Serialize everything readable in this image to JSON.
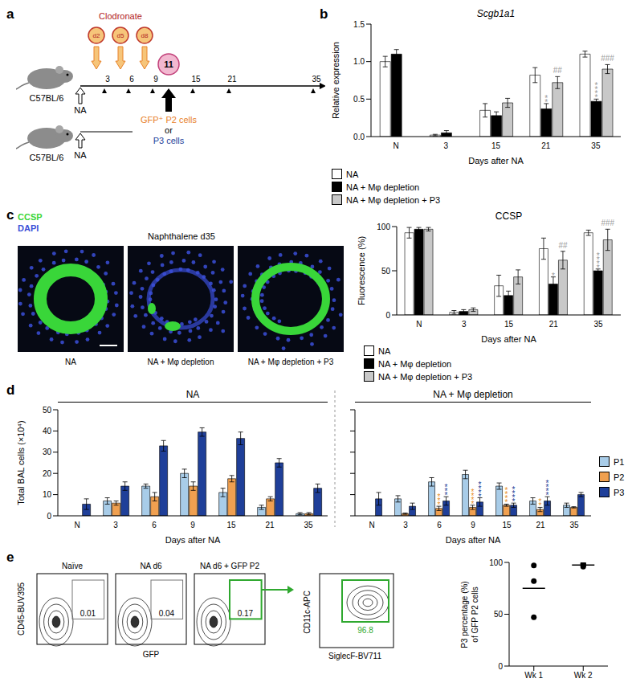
{
  "panel_labels": [
    "a",
    "b",
    "c",
    "d",
    "e"
  ],
  "schematic": {
    "mouse_strain": "C57BL/6",
    "injury": "NA",
    "treatment": "Clodronate",
    "clodronate_days": [
      {
        "day": 2,
        "label": "d2"
      },
      {
        "day": 5,
        "label": "d5"
      },
      {
        "day": 8,
        "label": "d8"
      }
    ],
    "timeline_days": [
      3,
      6,
      9,
      15,
      21,
      35
    ],
    "transfer_day": 11,
    "transfer_cells": [
      {
        "text": "GFP⁺ P2 cells",
        "color": "#e8822a"
      },
      {
        "text": "or",
        "color": "#000000"
      },
      {
        "text": "P3 cells",
        "color": "#1f3f99"
      }
    ]
  },
  "micrographs": {
    "title": "Naphthalene d35",
    "stains": [
      {
        "name": "CCSP",
        "color": "#39d639"
      },
      {
        "name": "DAPI",
        "color": "#3b4fd8"
      }
    ],
    "panels": [
      "NA",
      "NA + Mφ depletion",
      "NA + Mφ depletion + P3"
    ]
  },
  "flow": {
    "y_label": "CD45-BUV395",
    "x_label": "GFP",
    "plots": [
      {
        "title": "Naïve",
        "gate": 0.01
      },
      {
        "title": "NA d6",
        "gate": 0.04
      },
      {
        "title": "NA d6 + GFP P2",
        "gate": 0.17
      }
    ],
    "subgate": {
      "y_label": "CD11c-APC",
      "x_label": "SiglecF-BV711",
      "gate": 96.8
    }
  },
  "chart_data": [
    {
      "type": "bar",
      "title": "Scgb1a1",
      "y_label": "Relative expression",
      "x_label": "Days after NA",
      "categories": [
        "N",
        "3",
        "15",
        "21",
        "35"
      ],
      "series": [
        {
          "name": "NA",
          "color": "#ffffff",
          "values": [
            1.0,
            0.02,
            0.35,
            0.82,
            1.1
          ],
          "errors": [
            0.07,
            0.01,
            0.09,
            0.1,
            0.04
          ]
        },
        {
          "name": "NA + Mφ depletion",
          "color": "#000000",
          "values": [
            1.1,
            0.05,
            0.28,
            0.37,
            0.47
          ],
          "errors": [
            0.06,
            0.03,
            0.05,
            0.07,
            0.03
          ]
        },
        {
          "name": "NA + Mφ depletion + P3",
          "color": "#c8c8c8",
          "values": [
            null,
            null,
            0.45,
            0.72,
            0.9
          ],
          "errors": [
            null,
            null,
            0.06,
            0.08,
            0.06
          ]
        }
      ],
      "ylim": [
        0,
        1.5
      ],
      "yticks": [
        {
          "value": 0,
          "label": "0.0"
        },
        {
          "value": 0.5,
          "label": "0.5"
        },
        {
          "value": 1,
          "label": "1.0"
        },
        {
          "value": 1.5,
          "label": "1.5"
        }
      ],
      "annotations": [
        {
          "category": "21",
          "series": "NA + Mφ depletion",
          "text": "**",
          "color": "#9a9a9a"
        },
        {
          "category": "35",
          "series": "NA + Mφ depletion",
          "text": "****",
          "color": "#9a9a9a"
        },
        {
          "category": "21",
          "series": "NA + Mφ depletion + P3",
          "text": "##",
          "color": "#9a9a9a"
        },
        {
          "category": "35",
          "series": "NA + Mφ depletion + P3",
          "text": "###",
          "color": "#9a9a9a"
        }
      ]
    },
    {
      "type": "bar",
      "title": "CCSP",
      "y_label": "Fluorescence (%)",
      "x_label": "Days after NA",
      "categories": [
        "N",
        "3",
        "15",
        "21",
        "35"
      ],
      "series": [
        {
          "name": "NA",
          "color": "#ffffff",
          "values": [
            93,
            3,
            33,
            75,
            93
          ],
          "errors": [
            6,
            2,
            12,
            12,
            3
          ]
        },
        {
          "name": "NA + Mφ depletion",
          "color": "#000000",
          "values": [
            97,
            4,
            22,
            35,
            50
          ],
          "errors": [
            2,
            2,
            5,
            8,
            2
          ]
        },
        {
          "name": "NA + Mφ depletion + P3",
          "color": "#c8c8c8",
          "values": [
            97,
            6,
            43,
            62,
            85
          ],
          "errors": [
            2,
            2,
            8,
            10,
            12
          ]
        }
      ],
      "ylim": [
        0,
        100
      ],
      "yticks": [
        0,
        50,
        100
      ],
      "annotations": [
        {
          "category": "21",
          "series": "NA + Mφ depletion",
          "text": "*",
          "color": "#9a9a9a"
        },
        {
          "category": "35",
          "series": "NA + Mφ depletion",
          "text": "****",
          "color": "#9a9a9a"
        },
        {
          "category": "21",
          "series": "NA + Mφ depletion + P3",
          "text": "##",
          "color": "#9a9a9a"
        },
        {
          "category": "35",
          "series": "NA + Mφ depletion + P3",
          "text": "###",
          "color": "#9a9a9a"
        }
      ]
    },
    {
      "type": "bar",
      "title": "NA",
      "y_label": "Total BAL cells (×10⁴)",
      "x_label": "Days after NA",
      "categories": [
        "N",
        "3",
        "6",
        "9",
        "15",
        "21",
        "35"
      ],
      "series": [
        {
          "name": "P1",
          "color": "#a8cce8",
          "values": [
            0,
            7,
            14,
            20,
            11,
            4,
            1
          ],
          "errors": [
            0,
            1.5,
            1,
            2,
            2,
            1,
            0.5
          ]
        },
        {
          "name": "P2",
          "color": "#f0a050",
          "values": [
            0,
            6,
            9,
            14,
            17.5,
            8,
            1
          ],
          "errors": [
            0,
            1,
            2,
            2,
            1.5,
            1,
            0.5
          ]
        },
        {
          "name": "P3",
          "color": "#1f3f99",
          "values": [
            5.5,
            14,
            33,
            39.5,
            36.5,
            25,
            13
          ],
          "errors": [
            2.5,
            2,
            2.5,
            2,
            3,
            2,
            2
          ]
        }
      ],
      "ylim": [
        0,
        50
      ],
      "yticks": [
        0,
        10,
        20,
        30,
        40,
        50
      ],
      "annotations": []
    },
    {
      "type": "bar",
      "title": "NA + Mφ depletion",
      "x_label": "Days after NA",
      "tick_labels": "x",
      "categories": [
        "N",
        "3",
        "6",
        "9",
        "15",
        "21",
        "35"
      ],
      "series": [
        {
          "name": "P1",
          "color": "#a8cce8",
          "values": [
            0,
            8,
            16,
            19.5,
            14,
            7,
            5
          ],
          "errors": [
            0,
            1.5,
            2,
            2,
            1.5,
            1.5,
            1
          ]
        },
        {
          "name": "P2",
          "color": "#f0a050",
          "values": [
            0,
            1,
            3.5,
            4,
            5,
            3,
            4
          ],
          "errors": [
            0,
            0.3,
            1,
            1,
            0.5,
            1,
            0.3
          ]
        },
        {
          "name": "P3",
          "color": "#1f3f99",
          "values": [
            8,
            4.5,
            7,
            6.5,
            5,
            7,
            10
          ],
          "errors": [
            3,
            1.5,
            2,
            2,
            1,
            2,
            1
          ]
        }
      ],
      "ylim": [
        0,
        50
      ],
      "yticks": [
        0,
        10,
        20,
        30,
        40,
        50
      ],
      "annotations": [
        {
          "category": "6",
          "series": "P2",
          "text": "***",
          "color": "#e8902a"
        },
        {
          "category": "6",
          "series": "P3",
          "text": "***",
          "color": "#1f3f99"
        },
        {
          "category": "9",
          "series": "P2",
          "text": "****",
          "color": "#e8902a"
        },
        {
          "category": "9",
          "series": "P3",
          "text": "****",
          "color": "#1f3f99"
        },
        {
          "category": "15",
          "series": "P2",
          "text": "****",
          "color": "#e8902a"
        },
        {
          "category": "15",
          "series": "P3",
          "text": "****",
          "color": "#1f3f99"
        },
        {
          "category": "21",
          "series": "P2",
          "text": "**",
          "color": "#e8902a"
        },
        {
          "category": "21",
          "series": "P3",
          "text": "****",
          "color": "#1f3f99"
        }
      ]
    },
    {
      "type": "scatter",
      "y_label": [
        "P3 percentage (%)",
        "of GFP P2 cells"
      ],
      "categories": [
        "Wk 1",
        "Wk 2"
      ],
      "points": [
        [
          97,
          82,
          47
        ],
        [
          96,
          97,
          98,
          99
        ]
      ],
      "means": [
        75,
        97.5
      ],
      "ylim": [
        0,
        100
      ],
      "yticks": [
        0,
        50,
        100
      ]
    }
  ]
}
